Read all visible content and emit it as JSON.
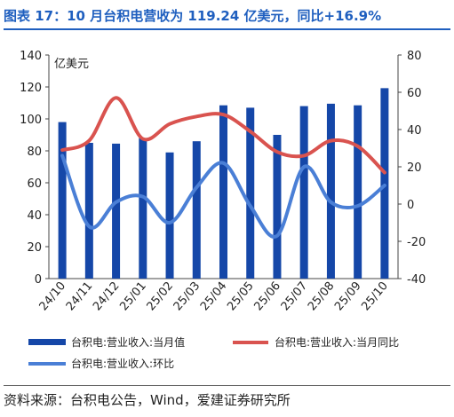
{
  "title": "图表 17：10 月台积电营收为 119.24 亿美元，同比+16.9%",
  "source": "资料来源：台积电公告，Wind，爱建证券研究所",
  "colors": {
    "title": "#1f5fbf",
    "bar": "#1547a8",
    "yoy": "#d9534f",
    "mom": "#4a7fd6"
  },
  "chart_data": {
    "type": "bar",
    "categories": [
      "24/10",
      "24/11",
      "24/12",
      "25/01",
      "25/02",
      "25/03",
      "25/04",
      "25/05",
      "25/06",
      "25/07",
      "25/08",
      "25/09",
      "25/10"
    ],
    "unit_label": "亿美元",
    "y_left": {
      "lim": [
        0,
        140
      ],
      "ticks": [
        0,
        20,
        40,
        60,
        80,
        100,
        120,
        140
      ]
    },
    "y_right": {
      "lim": [
        -40,
        80
      ],
      "ticks": [
        -40,
        -20,
        0,
        20,
        40,
        60,
        80
      ]
    },
    "series": [
      {
        "name": "台积电:营业收入:当月值",
        "type": "bar",
        "axis": "left",
        "values": [
          98,
          85,
          84.5,
          88,
          79,
          86,
          108.5,
          107,
          90,
          108,
          109.5,
          108.5,
          119.24
        ]
      },
      {
        "name": "台积电:营业收入:当月同比",
        "type": "line",
        "axis": "right",
        "values": [
          29,
          34,
          57,
          35,
          43,
          47,
          48,
          39,
          28,
          26,
          34,
          31,
          16.9
        ]
      },
      {
        "name": "台积电:营业收入:环比",
        "type": "line",
        "axis": "right",
        "values": [
          26,
          -12,
          1,
          4,
          -10,
          9,
          22,
          -1,
          -17,
          20,
          1,
          -1,
          10
        ]
      }
    ],
    "legend_position": "bottom",
    "grid": false
  }
}
